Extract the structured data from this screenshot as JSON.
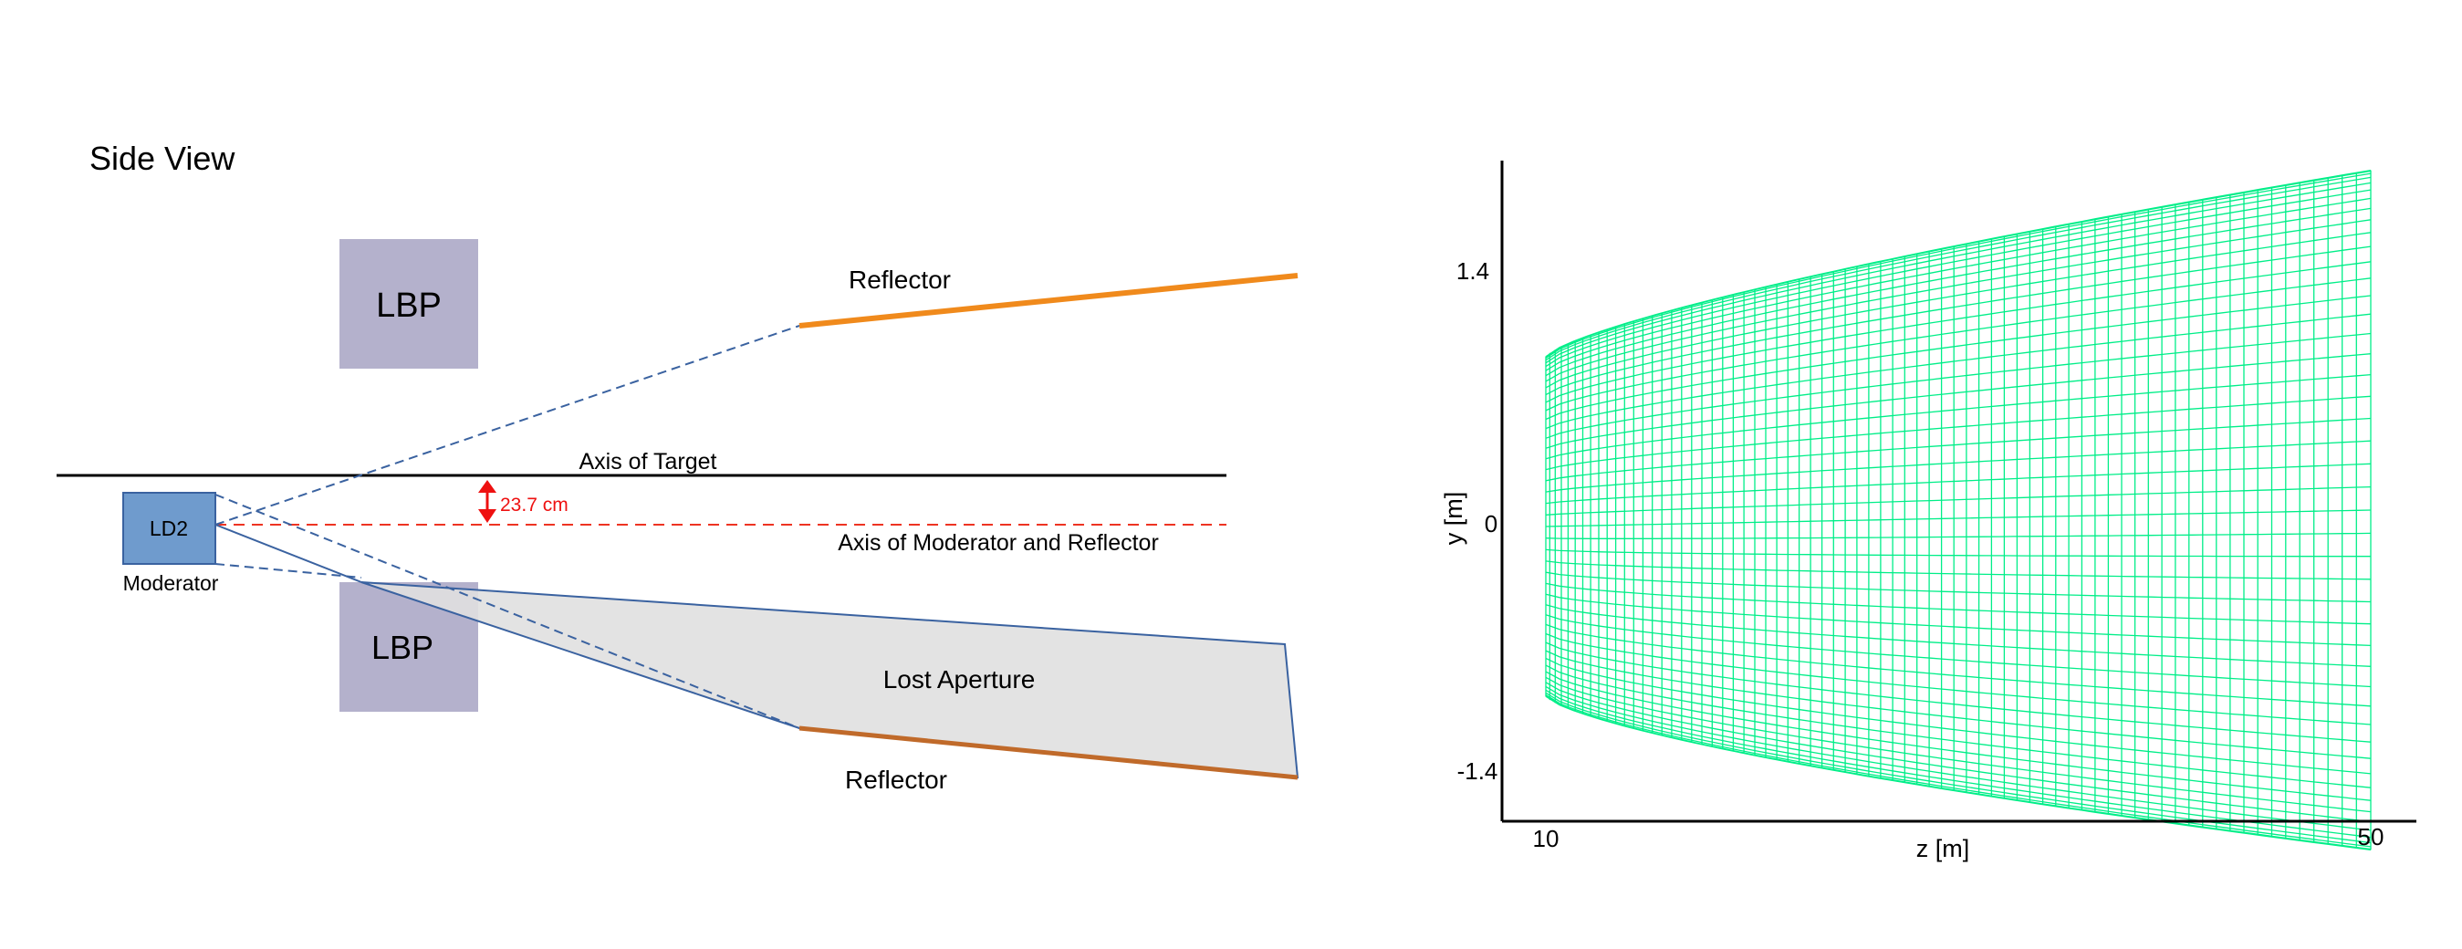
{
  "colors": {
    "reflector": "#f08a1c",
    "reflector_lower": "#c06a2a",
    "lbp_fill": "#b4b1cc",
    "moderator_fill": "#6f9bcd",
    "moderator_stroke": "#3a62a0",
    "ray": "#3a62a0",
    "axis_moderator": "#ee3322",
    "offset_marker": "#ee1111",
    "lost_aperture_fill": "#e0e0e0",
    "mesh": "#00ee88",
    "axis": "#000000"
  },
  "side_view": {
    "title": "Side View",
    "lbp_upper_label": "LBP",
    "lbp_lower_label": "LBP",
    "reflector_upper_label": "Reflector",
    "reflector_lower_label": "Reflector",
    "axis_target_label": "Axis of Target",
    "axis_moderator_label": "Axis of Moderator and Reflector",
    "offset_label": "23.7 cm",
    "moderator_box_label": "LD2",
    "moderator_label": "Moderator",
    "lost_aperture_label": "Lost Aperture"
  },
  "mesh_plot": {
    "x_axis_label": "z [m]",
    "y_axis_label": "y [m]",
    "x_ticks": [
      "10",
      "50"
    ],
    "y_ticks": [
      "1.4",
      "0",
      "-1.4"
    ],
    "z_range": [
      10,
      50
    ],
    "y_start_half_height": 0.95,
    "y_end_half_height": 1.9,
    "mesh_icon": "reflector-mesh-surface"
  }
}
